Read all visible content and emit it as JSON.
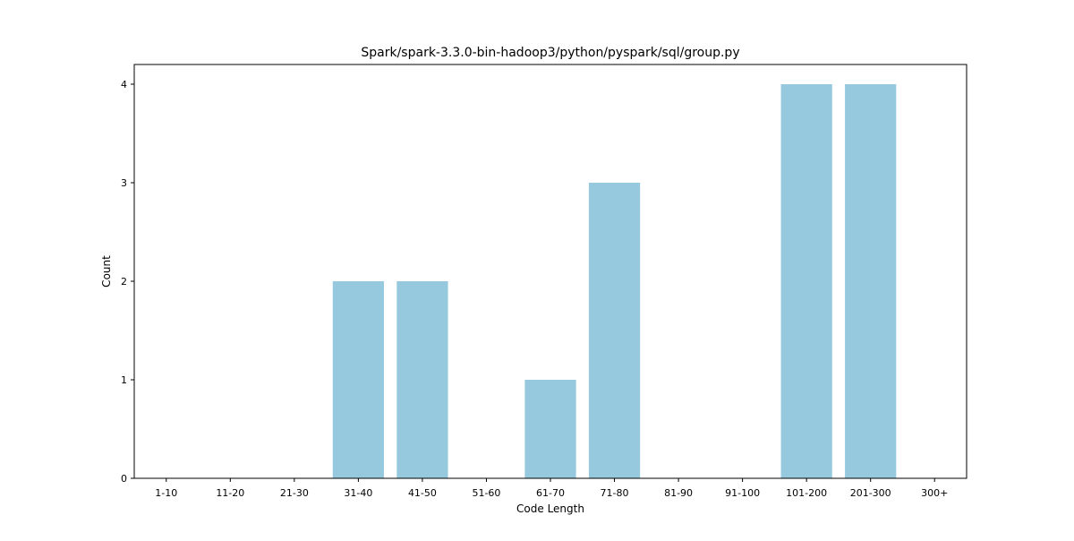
{
  "chart_data": {
    "type": "bar",
    "title": "Spark/spark-3.3.0-bin-hadoop3/python/pyspark/sql/group.py",
    "xlabel": "Code Length",
    "ylabel": "Count",
    "categories": [
      "1-10",
      "11-20",
      "21-30",
      "31-40",
      "41-50",
      "51-60",
      "61-70",
      "71-80",
      "81-90",
      "91-100",
      "101-200",
      "201-300",
      "300+"
    ],
    "values": [
      0,
      0,
      0,
      2,
      2,
      0,
      1,
      3,
      0,
      0,
      4,
      4,
      0
    ],
    "ylim": [
      0,
      4.2
    ],
    "yticks": [
      0,
      1,
      2,
      3,
      4
    ],
    "bar_color": "#96c9dd",
    "grid": false,
    "legend": "none"
  }
}
